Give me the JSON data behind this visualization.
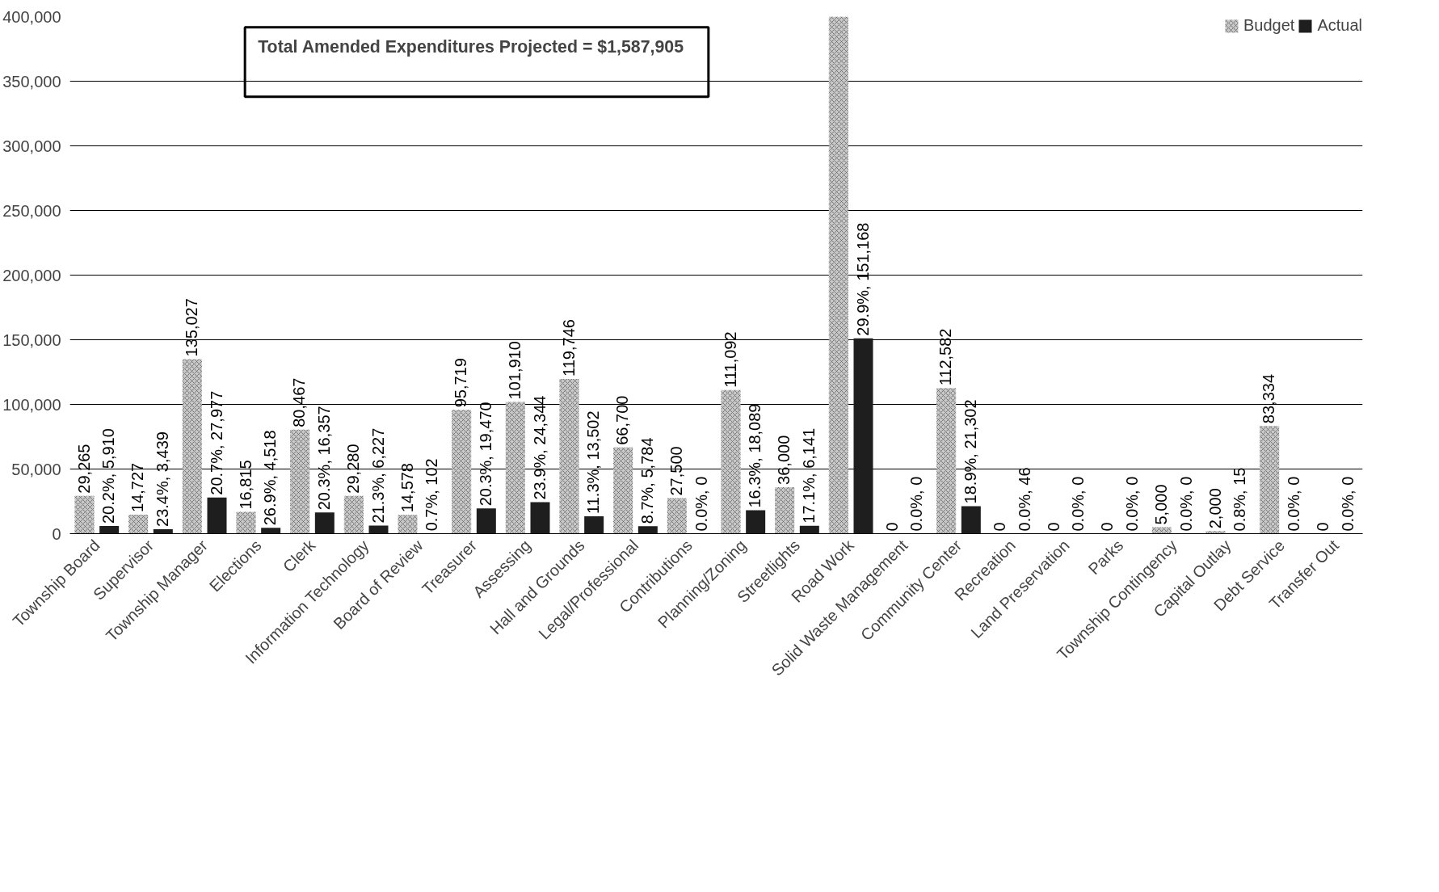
{
  "chart_data": {
    "type": "bar",
    "categories": [
      "Township Board",
      "Supervisor",
      "Township Manager",
      "Elections",
      "Clerk",
      "Information Technology",
      "Board of Review",
      "Treasurer",
      "Assessing",
      "Hall and Grounds",
      "Legal/Professional",
      "Contributions",
      "Planning/Zoning",
      "Streetlights",
      "Road Work",
      "Solid Waste Management",
      "Community Center",
      "Recreation",
      "Land Preservation",
      "Parks",
      "Township Contingency",
      "Capital Outlay",
      "Debt Service",
      "Transfer Out"
    ],
    "series": [
      {
        "name": "Budget",
        "color": "#c8c8c8",
        "values": [
          29265,
          14727,
          135027,
          16815,
          80467,
          29280,
          14578,
          95719,
          101910,
          119746,
          66700,
          27500,
          111092,
          36000,
          400000,
          0,
          112582,
          0,
          0,
          0,
          5000,
          2000,
          83334,
          0
        ],
        "value_labels": [
          "29,265",
          "14,727",
          "135,027",
          "16,815",
          "80,467",
          "29,280",
          "14,578",
          "95,719",
          "101,910",
          "119,746",
          "66,700",
          "27,500",
          "111,092",
          "36,000",
          null,
          "0",
          "112,582",
          "0",
          "0",
          "0",
          "5,000",
          "2,000",
          "83,334",
          "0"
        ]
      },
      {
        "name": "Actual",
        "color": "#1e1e1e",
        "values": [
          5910,
          3439,
          27977,
          4518,
          16357,
          6227,
          102,
          19470,
          24344,
          13502,
          5784,
          0,
          18089,
          6141,
          151168,
          0,
          21302,
          46,
          0,
          0,
          0,
          15,
          0,
          0
        ],
        "value_labels": [
          "20.2%, 5,910",
          "23.4%, 3,439",
          "20.7%, 27,977",
          "26.9%, 4,518",
          "20.3%, 16,357",
          "21.3%, 6,227",
          "0.7%, 102",
          "20.3%, 19,470",
          "23.9%, 24,344",
          "11.3%, 13,502",
          "8.7%, 5,784",
          "0.0%, 0",
          "16.3%, 18,089",
          "17.1%, 6,141",
          "29.9%, 151,168",
          "0.0%, 0",
          "18.9%, 21,302",
          "0.0%, 46",
          "0.0%, 0",
          "0.0%, 0",
          "0.0%, 0",
          "0.8%, 15",
          "0.0%, 0",
          "0.0%, 0"
        ]
      }
    ],
    "ylim": [
      0,
      400000
    ],
    "yticks": [
      {
        "value": 0,
        "label": "0"
      },
      {
        "value": 50000,
        "label": "50,000"
      },
      {
        "value": 100000,
        "label": "100,000"
      },
      {
        "value": 150000,
        "label": "150,000"
      },
      {
        "value": 200000,
        "label": "200,000"
      },
      {
        "value": 250000,
        "label": "250,000"
      },
      {
        "value": 300000,
        "label": "300,000"
      },
      {
        "value": 350000,
        "label": "350,000"
      },
      {
        "value": 400000,
        "label": "400,000"
      }
    ],
    "grid": "y",
    "legend": "top right",
    "annotations": [
      "Total Amended Expenditures Projected = $1,587,905"
    ]
  }
}
